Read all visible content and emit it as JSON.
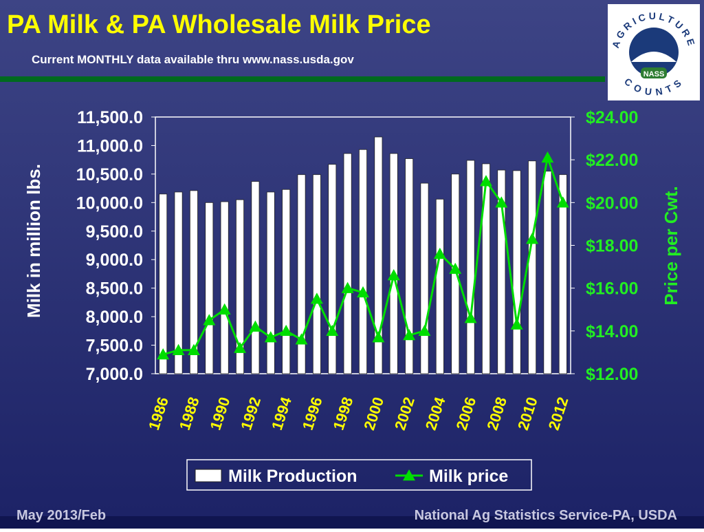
{
  "chart_data": {
    "type": "bar",
    "title": "PA Milk & PA Wholesale Milk Price",
    "subtitle": "Current MONTHLY data available thru www.nass.usda.gov",
    "y_label": "Milk in million lbs.",
    "y2_label": "Price per Cwt.",
    "categories": [
      "1986",
      null,
      "1988",
      null,
      "1990",
      null,
      "1992",
      null,
      "1994",
      null,
      "1996",
      null,
      "1998",
      null,
      "2000",
      null,
      "2002",
      null,
      "2004",
      null,
      "2006",
      null,
      "2008",
      null,
      "2010",
      null,
      "2012"
    ],
    "series": [
      {
        "name": "Milk Production",
        "type": "bar",
        "color": "#ffffff",
        "axis": "y",
        "values": [
          10150,
          10185,
          10210,
          10000,
          10015,
          10050,
          10370,
          10185,
          10230,
          10490,
          10490,
          10670,
          10860,
          10930,
          11150,
          10860,
          10770,
          10340,
          10060,
          10500,
          10740,
          10680,
          10570,
          10560,
          10730,
          10550,
          10490
        ]
      },
      {
        "name": "Milk price",
        "type": "line",
        "color": "#00dd00",
        "axis": "y2",
        "values": [
          12.9,
          13.1,
          13.1,
          14.5,
          15.0,
          13.2,
          14.2,
          13.7,
          14.0,
          13.6,
          15.5,
          14.0,
          16.0,
          15.8,
          13.7,
          16.6,
          13.8,
          14.0,
          17.6,
          16.9,
          14.6,
          21.0,
          20.0,
          14.3,
          18.3,
          22.1,
          20.0
        ]
      }
    ],
    "ylim": [
      7000,
      11500
    ],
    "yticks": [
      {
        "value": 7000,
        "label": "7,000.0"
      },
      {
        "value": 7500,
        "label": "7,500.0"
      },
      {
        "value": 8000,
        "label": "8,000.0"
      },
      {
        "value": 8500,
        "label": "8,500.0"
      },
      {
        "value": 9000,
        "label": "9,000.0"
      },
      {
        "value": 9500,
        "label": "9,500.0"
      },
      {
        "value": 10000,
        "label": "10,000.0"
      },
      {
        "value": 10500,
        "label": "10,500.0"
      },
      {
        "value": 11000,
        "label": "11,000.0"
      },
      {
        "value": 11500,
        "label": "11,500.0"
      }
    ],
    "y2lim": [
      12,
      24
    ],
    "y2ticks": [
      {
        "value": 12,
        "label": "$12.00"
      },
      {
        "value": 14,
        "label": "$14.00"
      },
      {
        "value": 16,
        "label": "$16.00"
      },
      {
        "value": 18,
        "label": "$18.00"
      },
      {
        "value": 20,
        "label": "$20.00"
      },
      {
        "value": 22,
        "label": "$22.00"
      },
      {
        "value": 24,
        "label": "$24.00"
      }
    ],
    "grid": false,
    "legend": "bottom"
  },
  "logo": {
    "top": "AGRICULTURE",
    "badge": "NASS",
    "bottom": "COUNTS"
  },
  "footer": {
    "left": "May 2013/Feb",
    "right": "National Ag Statistics Service-PA, USDA"
  }
}
